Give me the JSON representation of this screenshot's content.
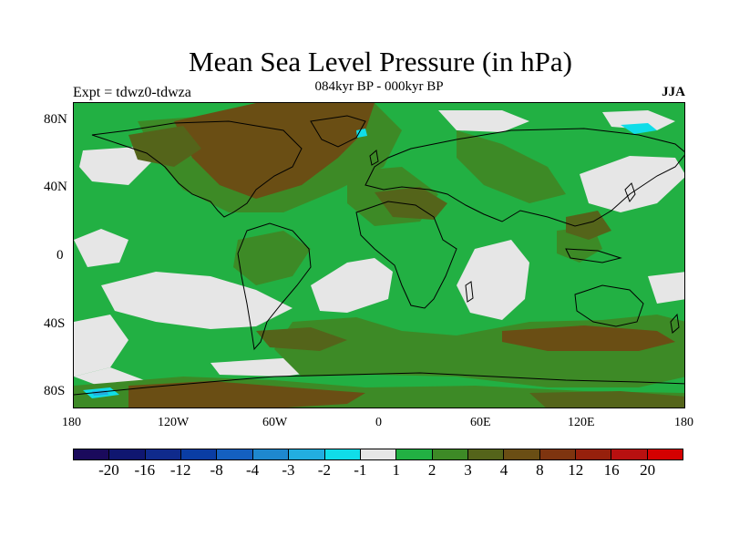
{
  "title": "Mean Sea Level Pressure (in hPa)",
  "subtitle": "084kyr BP - 000kyr BP",
  "experiment": "Expt = tdwz0-tdwza",
  "season": "JJA",
  "lat_labels": [
    "80N",
    "40N",
    "0",
    "40S",
    "80S"
  ],
  "lon_labels": [
    "180",
    "120W",
    "60W",
    "0",
    "60E",
    "120E",
    "180"
  ],
  "colorbar": {
    "colors": [
      "#1a0a5c",
      "#0f1670",
      "#0f2a8c",
      "#0a3da4",
      "#1460c0",
      "#1e88cf",
      "#22aee0",
      "#10dde8",
      "#e6e6e6",
      "#22b043",
      "#3d8a26",
      "#54641a",
      "#6a4e14",
      "#7e340f",
      "#96200c",
      "#b81010",
      "#d40000"
    ],
    "labels": [
      "-20",
      "-16",
      "-12",
      "-8",
      "-4",
      "-3",
      "-2",
      "-1",
      "1",
      "2",
      "3",
      "4",
      "8",
      "12",
      "16",
      "20"
    ]
  },
  "legend_colors": {
    "land_outline": "#000000",
    "near_zero": "#e6e6e6",
    "plus_1_2": "#22b043",
    "plus_2_3": "#3d8a26",
    "plus_3_4": "#54641a",
    "plus_4_8": "#6a4e14"
  }
}
